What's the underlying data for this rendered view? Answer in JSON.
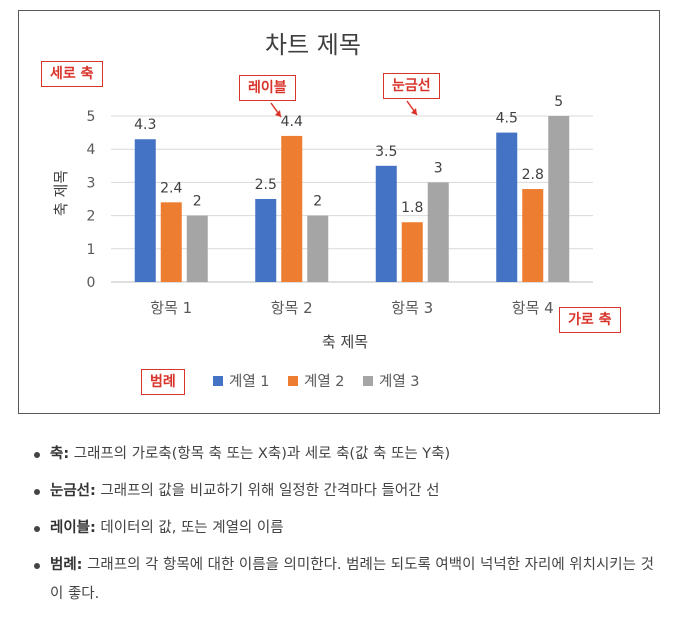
{
  "chart_data": {
    "type": "bar",
    "title": "차트 제목",
    "xlabel": "축 제목",
    "ylabel": "축 제목",
    "ylim": [
      0,
      5
    ],
    "yticks": [
      "0",
      "1",
      "2",
      "3",
      "4",
      "5"
    ],
    "grid": true,
    "legend_position": "bottom",
    "categories": [
      "항목 1",
      "항목 2",
      "항목 3",
      "항목 4"
    ],
    "series": [
      {
        "name": "계열 1",
        "color": "#4472c4",
        "values": [
          4.3,
          2.5,
          3.5,
          4.5
        ],
        "labels": [
          "4.3",
          "2.5",
          "3.5",
          "4.5"
        ]
      },
      {
        "name": "계열 2",
        "color": "#ed7d31",
        "values": [
          2.4,
          4.4,
          1.8,
          2.8
        ],
        "labels": [
          "2.4",
          "4.4",
          "1.8",
          "2.8"
        ]
      },
      {
        "name": "계열 3",
        "color": "#a5a5a5",
        "values": [
          2,
          2,
          3,
          5
        ],
        "labels": [
          "2",
          "2",
          "3",
          "5"
        ]
      }
    ]
  },
  "callouts": {
    "y_axis": "세로 축",
    "label": "레이블",
    "gridline": "눈금선",
    "x_axis": "가로 축",
    "legend": "범례"
  },
  "notes": [
    {
      "term": "축:",
      "text": " 그래프의 가로축(항목 축 또는 X축)과 세로 축(값 축 또는 Y축)"
    },
    {
      "term": "눈금선:",
      "text": " 그래프의 값을 비교하기 위해 일정한 간격마다 들어간 선"
    },
    {
      "term": "레이블:",
      "text": " 데이터의 값, 또는 계열의 이름"
    },
    {
      "term": "범례:",
      "text": " 그래프의 각 항목에 대한 이름을 의미한다. 범례는 되도록 여백이 넉넉한 자리에 위치시키는 것이 좋다."
    }
  ],
  "colors": {
    "accent": "#d9342b"
  }
}
